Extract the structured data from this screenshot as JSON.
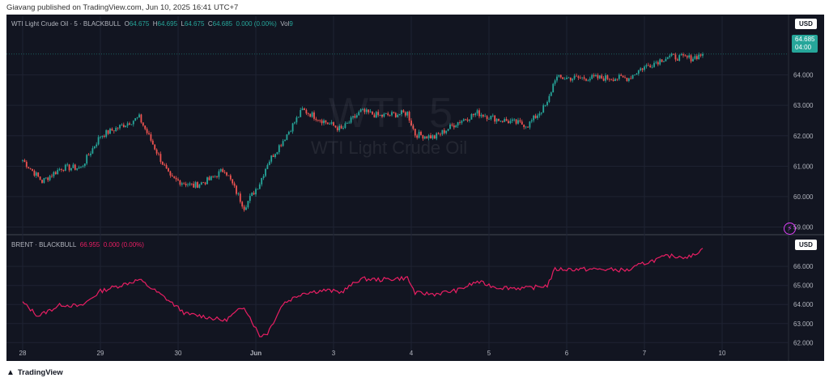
{
  "header": {
    "published": "Giavang published on TradingView.com, Jun 10, 2025 16:41 UTC+7"
  },
  "footer": {
    "logo_text": "TradingView",
    "logo_icon": "tradingview-logo-icon"
  },
  "top_pane": {
    "legend": {
      "symbol": "WTI Light Crude Oil · 5 · BLACKBULL",
      "o_label": "O",
      "o": "64.675",
      "h_label": "H",
      "h": "64.695",
      "l_label": "L",
      "l": "64.675",
      "c_label": "C",
      "c": "64.685",
      "change": "0.000 (0.00%)",
      "vol_label": "Vol",
      "vol": "9"
    },
    "currency": "USD",
    "last_price": "64.685",
    "countdown": "04:00",
    "watermark_symbol": "WTI, 5",
    "watermark_name": "WTI Light Crude Oil"
  },
  "bottom_pane": {
    "legend": {
      "symbol": "BRENT · BLACKBULL",
      "value": "66.955",
      "change": "0.000 (0.00%)"
    },
    "currency": "USD"
  },
  "colors": {
    "background": "#121521",
    "up": "#26a69a",
    "down": "#ef5350",
    "brent_line": "#e91e63",
    "grid": "#1f2332",
    "axis_text": "#b2b5be"
  },
  "chart_data": [
    {
      "type": "candlestick",
      "title": "WTI Light Crude Oil · 5 · BLACKBULL",
      "x_ticks": [
        "28",
        "29",
        "30",
        "Jun",
        "3",
        "4",
        "5",
        "6",
        "7",
        "10"
      ],
      "y_ticks": [
        "59.000",
        "60.000",
        "61.000",
        "62.000",
        "63.000",
        "64.000"
      ],
      "ylim": [
        58.8,
        65.4
      ],
      "grid": true,
      "series": [
        {
          "name": "WTI",
          "x": [
            0,
            0.25,
            0.5,
            0.75,
            1,
            1.5,
            1.9,
            2.2,
            2.4,
            2.6,
            2.85,
            3.05,
            3.15,
            3.35,
            3.6,
            3.9,
            4.1,
            4.35,
            4.6,
            4.95,
            5.05,
            5.3,
            5.6,
            5.85,
            6.1,
            6.5,
            6.75,
            6.85,
            7.4,
            7.8,
            7.95,
            8.3,
            8.6,
            8.75
          ],
          "values": [
            61.2,
            60.5,
            60.95,
            60.95,
            62.0,
            62.6,
            60.6,
            60.35,
            60.55,
            60.9,
            59.65,
            60.45,
            61.1,
            61.85,
            62.85,
            62.45,
            62.2,
            62.8,
            62.65,
            62.75,
            62.05,
            61.95,
            62.45,
            62.75,
            62.55,
            62.35,
            63.05,
            63.9,
            63.9,
            63.9,
            64.2,
            64.6,
            64.55,
            64.685
          ]
        }
      ]
    },
    {
      "type": "line",
      "title": "BRENT · BLACKBULL",
      "x_ticks": [
        "28",
        "29",
        "30",
        "Jun",
        "3",
        "4",
        "5",
        "6",
        "7",
        "10"
      ],
      "y_ticks": [
        "62.000",
        "63.000",
        "64.000",
        "65.000",
        "66.000"
      ],
      "ylim": [
        61.8,
        66.9
      ],
      "grid": true,
      "series": [
        {
          "name": "BRENT",
          "x": [
            0,
            0.2,
            0.5,
            0.75,
            1,
            1.5,
            1.85,
            2.1,
            2.3,
            2.6,
            2.85,
            3.05,
            3.15,
            3.35,
            3.6,
            3.9,
            4.1,
            4.35,
            4.6,
            4.95,
            5.05,
            5.3,
            5.6,
            5.85,
            6.1,
            6.5,
            6.75,
            6.85,
            7.4,
            7.8,
            7.95,
            8.3,
            8.6,
            8.75
          ],
          "values": [
            64.1,
            63.4,
            64.0,
            63.9,
            64.7,
            65.3,
            64.3,
            63.5,
            63.4,
            63.15,
            63.9,
            62.35,
            62.5,
            64.05,
            64.6,
            64.75,
            64.65,
            65.35,
            65.3,
            65.4,
            64.6,
            64.55,
            64.75,
            65.2,
            64.9,
            64.85,
            65.0,
            65.85,
            65.85,
            65.8,
            66.1,
            66.55,
            66.5,
            66.955
          ]
        }
      ]
    }
  ]
}
